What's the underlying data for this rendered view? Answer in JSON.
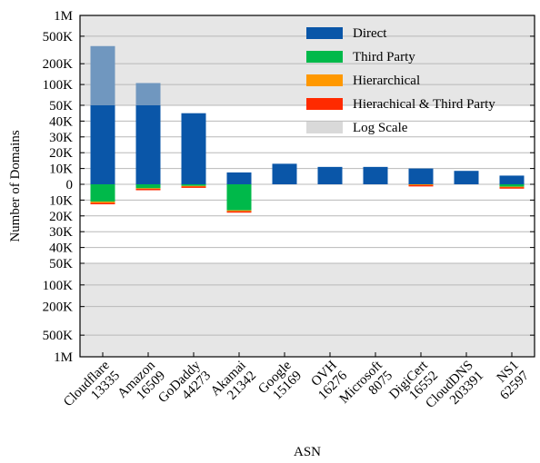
{
  "chart_data": {
    "type": "bar",
    "xlabel": "ASN",
    "ylabel": "Number of Domains",
    "categories": [
      [
        "Cloudflare",
        "13335"
      ],
      [
        "Amazon",
        "16509"
      ],
      [
        "GoDaddy",
        "44273"
      ],
      [
        "Akamai",
        "21342"
      ],
      [
        "Google",
        "15169"
      ],
      [
        "OVH",
        "16276"
      ],
      [
        "Microsoft",
        "8075"
      ],
      [
        "DigiCert",
        "16552"
      ],
      [
        "CloudDNS",
        "203391"
      ],
      [
        "NS1",
        "62597"
      ]
    ],
    "y_ticks": [
      "1M",
      "500K",
      "200K",
      "100K",
      "50K",
      "40K",
      "30K",
      "20K",
      "10K",
      "0",
      "10K",
      "20K",
      "30K",
      "40K",
      "50K",
      "100K",
      "200K",
      "500K",
      "1M"
    ],
    "scale": "linear within ±50K, log scale beyond 50K (shaded region)",
    "ylim": [
      -1000000,
      1000000
    ],
    "series": [
      {
        "name": "Direct",
        "color": "#0a56a8",
        "direction": "up",
        "values": [
          360000,
          105000,
          45000,
          7500,
          13000,
          11000,
          11000,
          10000,
          8500,
          5500
        ]
      },
      {
        "name": "Third Party",
        "color": "#00b94a",
        "direction": "down",
        "values": [
          11000,
          2500,
          1000,
          16500,
          0,
          0,
          0,
          0,
          0,
          1500
        ]
      },
      {
        "name": "Hierarchical",
        "color": "#ff9800",
        "direction": "down",
        "values": [
          800,
          400,
          400,
          600,
          0,
          0,
          0,
          500,
          0,
          400
        ]
      },
      {
        "name": "Hierachical & Third Party",
        "color": "#ff2a00",
        "direction": "down",
        "values": [
          500,
          200,
          200,
          400,
          0,
          0,
          0,
          300,
          0,
          300
        ]
      }
    ],
    "legend": {
      "position": "top-right",
      "entries": [
        {
          "label": "Direct",
          "color": "#0a56a8"
        },
        {
          "label": "Third Party",
          "color": "#00b94a"
        },
        {
          "label": "Hierarchical",
          "color": "#ff9800"
        },
        {
          "label": "Hierachical & Third Party",
          "color": "#ff2a00"
        },
        {
          "label": "Log Scale",
          "color": "#d9d9d9"
        }
      ]
    },
    "grid": true
  }
}
